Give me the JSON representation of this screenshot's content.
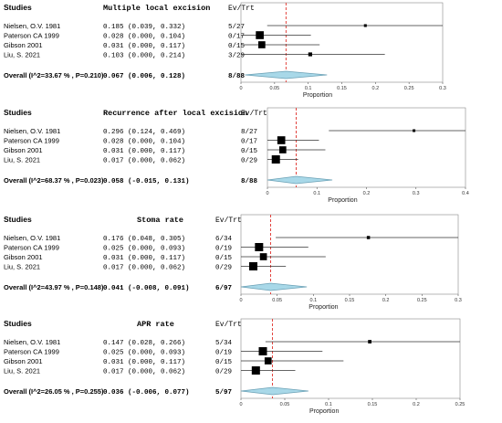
{
  "chart_data": [
    {
      "type": "forest",
      "title": "Multiple local excision",
      "studies_header": "Studies",
      "evtrt_header": "Ev/Trt",
      "xlabel": "Proportion",
      "xlim": [
        0,
        0.3
      ],
      "ticks": [
        0,
        0.05,
        0.1,
        0.15,
        0.2,
        0.25,
        0.3
      ],
      "tick_labels": [
        "0",
        "0.05",
        "0.1",
        "0.15",
        "0.2",
        "0.25",
        "0.3"
      ],
      "pooled_line": 0.067,
      "studies": [
        {
          "name": "Nielsen, O.V. 1981",
          "est_text": "0.185 (0.039, 0.332)",
          "evtrt": "5/27",
          "est": 0.185,
          "lo": 0.039,
          "hi": 0.332
        },
        {
          "name": "Paterson CA 1999",
          "est_text": "0.028 (0.000, 0.104)",
          "evtrt": "0/17",
          "est": 0.028,
          "lo": 0.0,
          "hi": 0.104
        },
        {
          "name": "Gibson 2001",
          "est_text": "0.031 (0.000, 0.117)",
          "evtrt": "0/15",
          "est": 0.031,
          "lo": 0.0,
          "hi": 0.117
        },
        {
          "name": "Liu, S. 2021",
          "est_text": "0.103 (0.000, 0.214)",
          "evtrt": "3/29",
          "est": 0.103,
          "lo": 0.0,
          "hi": 0.214
        }
      ],
      "overall": {
        "label": "Overall (I^2=33.67 % , P=0.210)",
        "est_text": "0.067 (0.006, 0.128)",
        "evtrt": "8/88",
        "est": 0.067,
        "lo": 0.006,
        "hi": 0.128
      }
    },
    {
      "type": "forest",
      "title": "Recurrence after local excision",
      "studies_header": "Studies",
      "evtrt_header": "Ev/Trt",
      "xlabel": "Proportion",
      "xlim": [
        0,
        0.4
      ],
      "ticks": [
        0,
        0.1,
        0.2,
        0.3,
        0.4
      ],
      "tick_labels": [
        "0",
        "0.1",
        "0.2",
        "0.3",
        "0.4"
      ],
      "pooled_line": 0.058,
      "studies": [
        {
          "name": "Nielsen, O.V. 1981",
          "est_text": "0.296 (0.124, 0.469)",
          "evtrt": "8/27",
          "est": 0.296,
          "lo": 0.124,
          "hi": 0.469
        },
        {
          "name": "Paterson CA 1999",
          "est_text": "0.028 (0.000, 0.104)",
          "evtrt": "0/17",
          "est": 0.028,
          "lo": 0.0,
          "hi": 0.104
        },
        {
          "name": "Gibson 2001",
          "est_text": "0.031 (0.000, 0.117)",
          "evtrt": "0/15",
          "est": 0.031,
          "lo": 0.0,
          "hi": 0.117
        },
        {
          "name": "Liu, S. 2021",
          "est_text": "0.017 (0.000, 0.062)",
          "evtrt": "0/29",
          "est": 0.017,
          "lo": 0.0,
          "hi": 0.062
        }
      ],
      "overall": {
        "label": "Overall (I^2=68.37 % , P=0.023)",
        "est_text": "0.058 (-0.015, 0.131)",
        "evtrt": "8/88",
        "est": 0.058,
        "lo": -0.015,
        "hi": 0.131
      }
    },
    {
      "type": "forest",
      "title": "Stoma rate",
      "studies_header": "Studies",
      "evtrt_header": "Ev/Trt",
      "xlabel": "Proportion",
      "xlim": [
        0,
        0.3
      ],
      "ticks": [
        0,
        0.05,
        0.1,
        0.15,
        0.2,
        0.25,
        0.3
      ],
      "tick_labels": [
        "0",
        "0.05",
        "0.1",
        "0.15",
        "0.2",
        "0.25",
        "0.3"
      ],
      "pooled_line": 0.041,
      "studies": [
        {
          "name": "Nielsen, O.V. 1981",
          "est_text": "0.176 (0.048, 0.305)",
          "evtrt": "6/34",
          "est": 0.176,
          "lo": 0.048,
          "hi": 0.305
        },
        {
          "name": "Paterson CA 1999",
          "est_text": "0.025 (0.000, 0.093)",
          "evtrt": "0/19",
          "est": 0.025,
          "lo": 0.0,
          "hi": 0.093
        },
        {
          "name": "Gibson 2001",
          "est_text": "0.031 (0.000, 0.117)",
          "evtrt": "0/15",
          "est": 0.031,
          "lo": 0.0,
          "hi": 0.117
        },
        {
          "name": "Liu, S. 2021",
          "est_text": "0.017 (0.000, 0.062)",
          "evtrt": "0/29",
          "est": 0.017,
          "lo": 0.0,
          "hi": 0.062
        }
      ],
      "overall": {
        "label": "Overall (I^2=43.97 % , P=0.148)",
        "est_text": "0.041 (-0.008, 0.091)",
        "evtrt": "6/97",
        "est": 0.041,
        "lo": -0.008,
        "hi": 0.091
      }
    },
    {
      "type": "forest",
      "title": "APR rate",
      "studies_header": "Studies",
      "evtrt_header": "Ev/Trt",
      "xlabel": "Proportion",
      "xlim": [
        0,
        0.25
      ],
      "ticks": [
        0,
        0.05,
        0.1,
        0.15,
        0.2,
        0.25
      ],
      "tick_labels": [
        "0",
        "0.05",
        "0.1",
        "0.15",
        "0.2",
        "0.25"
      ],
      "pooled_line": 0.036,
      "studies": [
        {
          "name": "Nielsen, O.V. 1981",
          "est_text": "0.147 (0.028, 0.266)",
          "evtrt": "5/34",
          "est": 0.147,
          "lo": 0.028,
          "hi": 0.266
        },
        {
          "name": "Paterson CA 1999",
          "est_text": "0.025 (0.000, 0.093)",
          "evtrt": "0/19",
          "est": 0.025,
          "lo": 0.0,
          "hi": 0.093
        },
        {
          "name": "Gibson 2001",
          "est_text": "0.031 (0.000, 0.117)",
          "evtrt": "0/15",
          "est": 0.031,
          "lo": 0.0,
          "hi": 0.117
        },
        {
          "name": "Liu, S. 2021",
          "est_text": "0.017 (0.000, 0.062)",
          "evtrt": "0/29",
          "est": 0.017,
          "lo": 0.0,
          "hi": 0.062
        }
      ],
      "overall": {
        "label": "Overall (I^2=26.05 % , P=0.255)",
        "est_text": "0.036 (-0.006, 0.077)",
        "evtrt": "5/97",
        "est": 0.036,
        "lo": -0.006,
        "hi": 0.077
      }
    }
  ],
  "colors": {
    "diamond_fill": "#a8d8e8",
    "diamond_stroke": "#6aa0b5",
    "pooled_line": "#e0302a",
    "text": "#000000",
    "axis": "#555555"
  }
}
